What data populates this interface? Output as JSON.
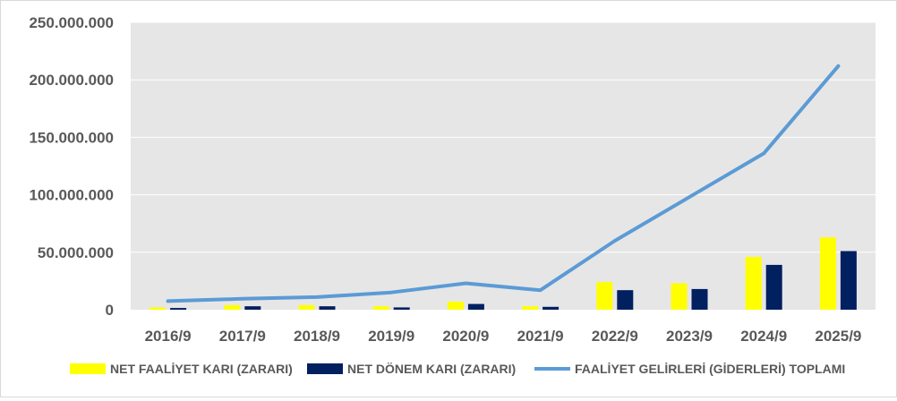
{
  "chart_data": {
    "type": "bar",
    "categories": [
      "2016/9",
      "2017/9",
      "2018/9",
      "2019/9",
      "2020/9",
      "2021/9",
      "2022/9",
      "2023/9",
      "2024/9",
      "2025/9"
    ],
    "ylim": [
      0,
      250000000
    ],
    "yticks": [
      0,
      50000000,
      100000000,
      150000000,
      200000000,
      250000000
    ],
    "ytick_labels": [
      "0",
      "50.000.000",
      "100.000.000",
      "150.000.000",
      "200.000.000",
      "250.000.000"
    ],
    "grid": true,
    "legend_position": "bottom",
    "plot_background": "#e7e6e6",
    "series": [
      {
        "name": "NET FAALİYET KARI (ZARARI)",
        "type": "bar",
        "color": "#ffff00",
        "values": [
          2000000,
          4000000,
          4000000,
          3000000,
          7000000,
          3000000,
          24000000,
          23000000,
          46000000,
          63000000
        ]
      },
      {
        "name": "NET DÖNEM KARI (ZARARI)",
        "type": "bar",
        "color": "#002060",
        "values": [
          1500000,
          3000000,
          3000000,
          2000000,
          5000000,
          2500000,
          17000000,
          18000000,
          39000000,
          51000000
        ]
      },
      {
        "name": "FAALİYET GELİRLERİ (GİDERLERİ) TOPLAMI",
        "type": "line",
        "color": "#5b9bd5",
        "values": [
          7500000,
          9500000,
          11000000,
          15000000,
          23000000,
          17000000,
          60000000,
          98000000,
          136000000,
          212000000
        ]
      }
    ]
  }
}
